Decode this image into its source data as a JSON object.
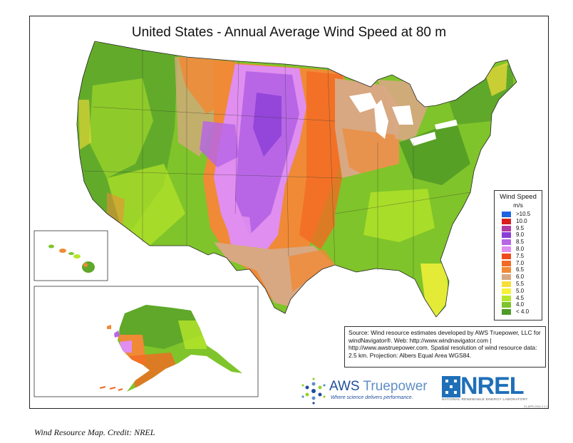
{
  "map": {
    "title": "United States - Annual Average Wind Speed at 80 m",
    "regions_shown": [
      "contiguous-us",
      "hawaii-inset",
      "alaska-inset"
    ]
  },
  "legend": {
    "title": "Wind Speed",
    "unit": "m/s",
    "items": [
      {
        "label": ">10.5",
        "color": "#1e63e0"
      },
      {
        "label": "10.0",
        "color": "#d81f1f"
      },
      {
        "label": "9.5",
        "color": "#b23aa6"
      },
      {
        "label": "9.0",
        "color": "#8a3ed6"
      },
      {
        "label": "8.5",
        "color": "#b866e6"
      },
      {
        "label": "8.0",
        "color": "#e08ef0"
      },
      {
        "label": "7.5",
        "color": "#f04a1c"
      },
      {
        "label": "7.0",
        "color": "#f26a24"
      },
      {
        "label": "6.5",
        "color": "#f08a36"
      },
      {
        "label": "6.0",
        "color": "#d8a882"
      },
      {
        "label": "5.5",
        "color": "#f6de3a"
      },
      {
        "label": "5.0",
        "color": "#f4f23a"
      },
      {
        "label": "4.5",
        "color": "#b6e62a"
      },
      {
        "label": "4.0",
        "color": "#7fc42a"
      },
      {
        "label": "< 4.0",
        "color": "#4f9a26"
      }
    ]
  },
  "source": {
    "text": "Source: Wind resource estimates developed by AWS Truepower, LLC for windNavigator®. Web: http://www.windnavigator.com | http://www.awstruepower.com. Spatial resolution of wind resource data: 2.5 km. Projection: Albers Equal Area WGS84."
  },
  "logos": {
    "aws_brand": "AWS",
    "aws_name": "Truepower",
    "aws_tagline": "Where science delivers performance.",
    "nrel_name": "NREL",
    "nrel_subtitle": "NATIONAL RENEWABLE ENERGY LABORATORY",
    "stamp": "21-APR-2011 2.1.1"
  },
  "caption": "Wind Resource Map.  Credit:  NREL"
}
